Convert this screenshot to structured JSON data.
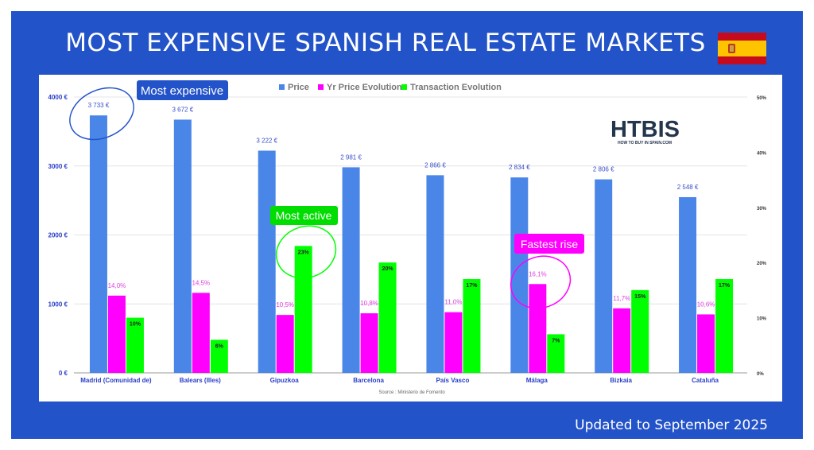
{
  "header": {
    "title": "MOST EXPENSIVE SPANISH REAL ESTATE MARKETS",
    "flag_icon": "spain-flag"
  },
  "footer": {
    "updated": "Updated to September 2025"
  },
  "logo": {
    "text": "HTBIS",
    "tagline": "HOW TO BUY IN SPAIN.COM"
  },
  "annotations": {
    "most_expensive": "Most expensive",
    "most_active": "Most active",
    "fastest_rise": "Fastest rise"
  },
  "colors": {
    "price": "#4a86e8",
    "yr_price": "#ff00ff",
    "transaction": "#00ff00",
    "background": "#2353c9"
  },
  "chart_data": {
    "type": "bar",
    "categories": [
      "Madrid (Comunidad de)",
      "Balears (Illes)",
      "Gipuzkoa",
      "Barcelona",
      "País Vasco",
      "Málaga",
      "Bizkaia",
      "Cataluña"
    ],
    "series": [
      {
        "name": "Price",
        "axis": "left",
        "values": [
          3733,
          3672,
          3222,
          2981,
          2866,
          2834,
          2806,
          2548
        ],
        "labels": [
          "3 733 €",
          "3 672 €",
          "3 222 €",
          "2 981 €",
          "2 866 €",
          "2 834 €",
          "2 806 €",
          "2 548 €"
        ]
      },
      {
        "name": "Yr Price Evolution",
        "axis": "right",
        "values": [
          14.0,
          14.5,
          10.5,
          10.8,
          11.0,
          16.1,
          11.7,
          10.6
        ],
        "labels": [
          "14,0%",
          "14,5%",
          "10,5%",
          "10,8%",
          "11,0%",
          "16,1%",
          "11,7%",
          "10,6%"
        ]
      },
      {
        "name": "Transaction Evolution",
        "axis": "right",
        "values": [
          10,
          6,
          23,
          20,
          17,
          7,
          15,
          17
        ],
        "labels": [
          "10%",
          "6%",
          "23%",
          "20%",
          "17%",
          "7%",
          "15%",
          "17%"
        ]
      }
    ],
    "y_left": {
      "range": [
        0,
        4000
      ],
      "ticks": [
        "0 €",
        "1000 €",
        "2000 €",
        "3000 €",
        "4000 €"
      ]
    },
    "y_right": {
      "range": [
        0,
        50
      ],
      "ticks": [
        "0%",
        "10%",
        "20%",
        "30%",
        "40%",
        "50%"
      ]
    },
    "grid": true,
    "legend": "top",
    "source": "Source : Ministerio de Fomento"
  }
}
